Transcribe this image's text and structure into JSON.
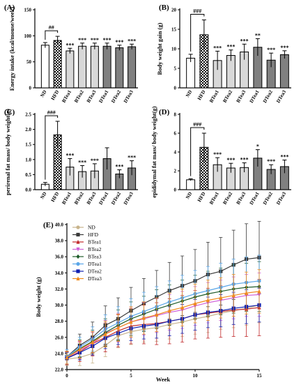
{
  "chart_data": [
    {
      "type": "bar",
      "panel": "(A)",
      "ylabel": "Energy intake (kcal/mouse/week)",
      "ylim": [
        0,
        150
      ],
      "yticks": [
        0,
        50,
        100,
        150
      ],
      "categories": [
        "ND",
        "HFD",
        "BTea1",
        "BTea2",
        "BTea3",
        "DTea1",
        "DTea2",
        "DTea3"
      ],
      "values": [
        82,
        91,
        71,
        80,
        80,
        80,
        77,
        79
      ],
      "errors": [
        5,
        8,
        5,
        6,
        6,
        6,
        5,
        5
      ],
      "significance": [
        "",
        "##",
        "***",
        "***",
        "***",
        "***",
        "***",
        "***"
      ],
      "bracket_label": "##"
    },
    {
      "type": "bar",
      "panel": "(B)",
      "ylabel": "Body weight gain (g)",
      "ylim": [
        0,
        20
      ],
      "yticks": [
        0,
        5,
        10,
        15,
        20
      ],
      "categories": [
        "ND",
        "HFD",
        "BTea1",
        "BTea2",
        "BTea3",
        "DTea1",
        "DTea2",
        "DTea3"
      ],
      "values": [
        7.6,
        13.6,
        7.0,
        8.3,
        9.2,
        10.4,
        7.1,
        8.5
      ],
      "errors": [
        1.0,
        3.8,
        2.4,
        1.4,
        2.0,
        2.2,
        1.8,
        1.0
      ],
      "significance": [
        "",
        "###",
        "***",
        "***",
        "***",
        "**",
        "***",
        "***"
      ],
      "bracket_label": "###"
    },
    {
      "type": "bar",
      "panel": "(C)",
      "ylabel": "perirenal fat mass/ body weight(g)",
      "ylim": [
        0,
        2.5
      ],
      "yticks": [
        0.0,
        0.5,
        1.0,
        1.5,
        2.0,
        2.5
      ],
      "categories": [
        "ND",
        "HFD",
        "BTea1",
        "BTea2",
        "BTea3",
        "DTea1",
        "DTea2",
        "DTea3"
      ],
      "values": [
        0.18,
        1.82,
        0.75,
        0.6,
        0.62,
        1.03,
        0.52,
        0.72
      ],
      "errors": [
        0.06,
        0.45,
        0.28,
        0.2,
        0.24,
        0.36,
        0.14,
        0.24
      ],
      "significance": [
        "",
        "###",
        "***",
        "***",
        "***",
        "",
        "***",
        "***"
      ],
      "bracket_label": "###"
    },
    {
      "type": "bar",
      "panel": "(D)",
      "ylabel": "epididymal fat mass/ body weight(g)",
      "ylim": [
        0,
        8
      ],
      "yticks": [
        0,
        2,
        4,
        6,
        8
      ],
      "categories": [
        "ND",
        "HFD",
        "BTea1",
        "BTea2",
        "BTea3",
        "DTea1",
        "DTea2",
        "DTea3"
      ],
      "values": [
        1.05,
        4.5,
        2.65,
        2.3,
        2.35,
        3.35,
        2.15,
        2.45
      ],
      "errors": [
        0.1,
        1.5,
        0.75,
        0.5,
        0.5,
        0.9,
        0.5,
        0.7
      ],
      "significance": [
        "",
        "###",
        "***",
        "***",
        "***",
        "*",
        "***",
        "***"
      ],
      "bracket_label": "###"
    },
    {
      "type": "line",
      "panel": "(E)",
      "xlabel": "Week",
      "ylabel": "Body weight (g)",
      "xlim": [
        0,
        15
      ],
      "ylim": [
        22.0,
        40.0
      ],
      "xticks": [
        0,
        5,
        10,
        15
      ],
      "yticks": [
        22.0,
        24.0,
        26.0,
        28.0,
        30.0,
        32.0,
        34.0,
        36.0,
        38.0,
        40.0
      ],
      "x": [
        0,
        1,
        2,
        3,
        4,
        5,
        6,
        7,
        8,
        9,
        10,
        11,
        12,
        13,
        14,
        15
      ],
      "series": [
        {
          "name": "ND",
          "color": "#c8b48c",
          "marker": "circle",
          "values": [
            23.3,
            23.5,
            24.0,
            25.0,
            26.2,
            26.7,
            27.0,
            27.2,
            27.6,
            27.9,
            28.3,
            28.6,
            29.0,
            29.3,
            29.6,
            30.0
          ],
          "errors": [
            0.8,
            1.0,
            1.2,
            1.4,
            1.5,
            1.6,
            1.6,
            1.7,
            1.8,
            1.8,
            1.9,
            2.0,
            2.0,
            2.1,
            2.1,
            2.2
          ]
        },
        {
          "name": "HFD",
          "color": "#3a3a3a",
          "marker": "square",
          "values": [
            23.6,
            25.0,
            26.0,
            27.5,
            28.3,
            29.3,
            30.2,
            31.0,
            31.8,
            32.4,
            33.0,
            33.8,
            34.2,
            35.0,
            35.7,
            35.9
          ],
          "errors": [
            0.9,
            1.4,
            1.9,
            2.4,
            2.6,
            2.9,
            3.1,
            3.3,
            3.5,
            3.7,
            3.9,
            4.0,
            4.2,
            4.3,
            4.4,
            4.5
          ]
        },
        {
          "name": "BTea1",
          "color": "#c0282a",
          "marker": "triangle",
          "values": [
            23.4,
            24.2,
            25.2,
            26.0,
            26.8,
            27.4,
            27.6,
            27.7,
            28.0,
            28.3,
            28.8,
            29.0,
            29.2,
            29.4,
            29.5,
            29.7
          ],
          "errors": [
            0.8,
            1.2,
            1.5,
            1.8,
            2.0,
            2.2,
            2.4,
            2.6,
            2.8,
            2.9,
            3.0,
            3.1,
            3.2,
            3.3,
            3.4,
            3.5
          ]
        },
        {
          "name": "BTea2",
          "color": "#d060d8",
          "marker": "triangle-down",
          "values": [
            23.5,
            24.4,
            25.2,
            26.5,
            27.2,
            27.9,
            28.3,
            28.7,
            29.1,
            29.4,
            29.9,
            30.3,
            30.6,
            30.9,
            31.2,
            31.3
          ],
          "errors": [
            0.8,
            1.1,
            1.4,
            1.6,
            1.8,
            1.9,
            2.0,
            2.1,
            2.2,
            2.3,
            2.4,
            2.5,
            2.5,
            2.6,
            2.6,
            2.7
          ]
        },
        {
          "name": "BTea3",
          "color": "#1f5c2a",
          "marker": "diamond",
          "values": [
            23.5,
            24.6,
            25.5,
            26.6,
            27.5,
            28.3,
            28.9,
            29.5,
            30.0,
            30.5,
            31.0,
            31.4,
            31.7,
            32.0,
            32.2,
            32.3
          ],
          "errors": [
            0.8,
            1.1,
            1.4,
            1.7,
            1.9,
            2.1,
            2.2,
            2.4,
            2.5,
            2.6,
            2.7,
            2.8,
            2.9,
            3.0,
            3.0,
            3.1
          ]
        },
        {
          "name": "DTea1",
          "color": "#5aa6e8",
          "marker": "circle",
          "values": [
            23.6,
            24.8,
            25.8,
            27.0,
            27.8,
            28.6,
            29.2,
            29.8,
            30.4,
            30.9,
            31.4,
            31.8,
            32.2,
            32.6,
            32.8,
            33.0
          ],
          "errors": [
            0.9,
            1.2,
            1.5,
            1.8,
            2.0,
            2.2,
            2.4,
            2.5,
            2.6,
            2.8,
            2.9,
            3.0,
            3.0,
            3.1,
            3.2,
            3.2
          ]
        },
        {
          "name": "DTea2",
          "color": "#1020b0",
          "marker": "square",
          "values": [
            23.4,
            24.1,
            24.9,
            25.9,
            26.5,
            27.1,
            27.4,
            27.6,
            28.0,
            28.3,
            28.8,
            29.1,
            29.3,
            29.6,
            29.8,
            30.0
          ],
          "errors": [
            0.7,
            0.9,
            1.1,
            1.3,
            1.4,
            1.5,
            1.6,
            1.7,
            1.8,
            1.8,
            1.9,
            1.9,
            2.0,
            2.0,
            2.1,
            2.1
          ]
        },
        {
          "name": "DTea3",
          "color": "#f08a1c",
          "marker": "triangle",
          "values": [
            23.5,
            24.5,
            25.4,
            26.4,
            27.2,
            27.9,
            28.4,
            28.8,
            29.3,
            29.7,
            30.2,
            30.6,
            30.9,
            31.2,
            31.5,
            31.7
          ],
          "errors": [
            0.8,
            1.1,
            1.3,
            1.6,
            1.7,
            1.9,
            2.0,
            2.1,
            2.2,
            2.3,
            2.4,
            2.5,
            2.5,
            2.6,
            2.6,
            2.7
          ]
        }
      ]
    }
  ],
  "bar_fills": [
    "#ffffff",
    "checker",
    "#d8d8d8",
    "#d8d8d8",
    "#d8d8d8",
    "#808080",
    "#808080",
    "#808080"
  ]
}
